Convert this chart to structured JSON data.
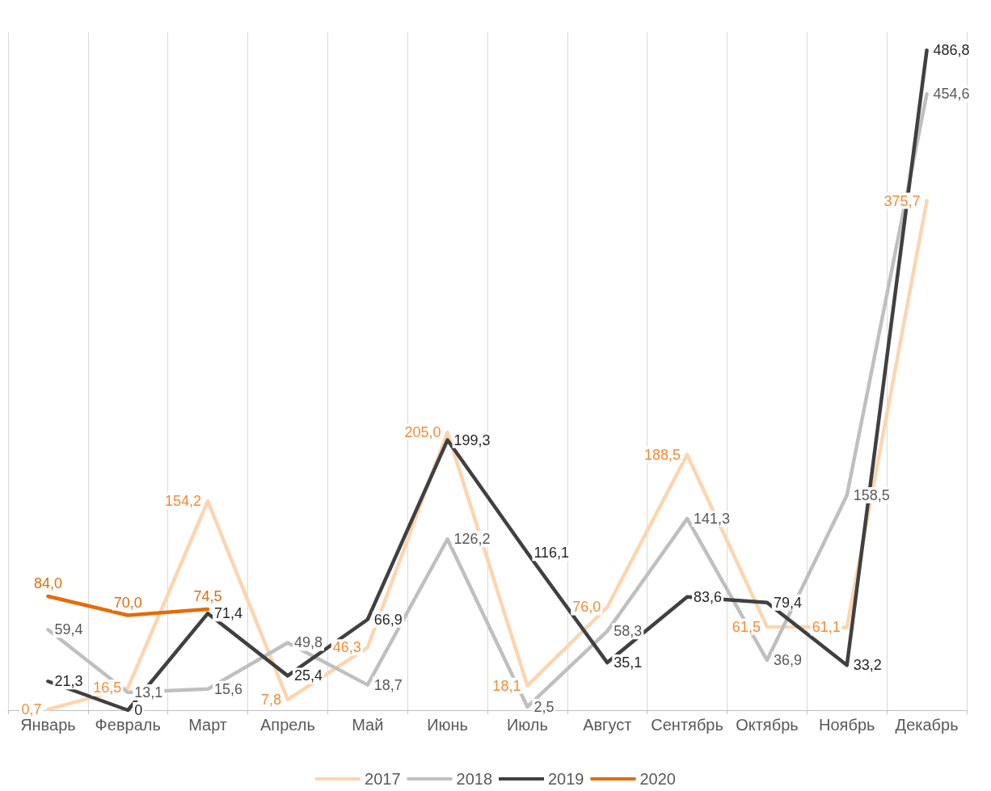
{
  "chart_data": {
    "type": "line",
    "categories": [
      "Январь",
      "Февраль",
      "Март",
      "Апрель",
      "Май",
      "Июнь",
      "Июль",
      "Август",
      "Сентябрь",
      "Октябрь",
      "Ноябрь",
      "Декабрь"
    ],
    "series": [
      {
        "name": "2017",
        "color": "#fcd5b0",
        "values": [
          0.7,
          16.5,
          154.2,
          7.8,
          46.3,
          205.0,
          18.1,
          76.0,
          188.5,
          61.5,
          61.1,
          375.7
        ],
        "value_labels": [
          "0,7",
          "16,5",
          "154,2",
          "7,8",
          "46,3",
          "205,0",
          "18,1",
          "76,0",
          "188,5",
          "61,5",
          "61,1",
          "375,7"
        ]
      },
      {
        "name": "2018",
        "color": "#bfbfbf",
        "values": [
          59.4,
          13.1,
          15.6,
          49.8,
          18.7,
          126.2,
          2.5,
          58.3,
          141.3,
          36.9,
          158.5,
          454.6
        ],
        "value_labels": [
          "59,4",
          "13,1",
          "15,6",
          "49,8",
          "18,7",
          "126,2",
          "2,5",
          "58,3",
          "141,3",
          "36,9",
          "158,5",
          "454,6"
        ]
      },
      {
        "name": "2019",
        "color": "#404040",
        "values": [
          21.3,
          0,
          71.4,
          25.4,
          66.9,
          199.3,
          116.1,
          35.1,
          83.6,
          79.4,
          33.2,
          486.8
        ],
        "value_labels": [
          "21,3",
          "0",
          "71,4",
          "25,4",
          "66,9",
          "199,3",
          "116,1",
          "35,1",
          "83,6",
          "79,4",
          "33,2",
          "486,8"
        ]
      },
      {
        "name": "2020",
        "color": "#e46c0a",
        "values": [
          84.0,
          70.0,
          74.5,
          null,
          null,
          null,
          null,
          null,
          null,
          null,
          null,
          null
        ],
        "value_labels": [
          "84,0",
          "70,0",
          "74,5",
          null,
          null,
          null,
          null,
          null,
          null,
          null,
          null,
          null
        ]
      }
    ],
    "grid": "x",
    "legend": "bottom",
    "marker": "none",
    "line_style": "solid",
    "tick_labels": "x"
  }
}
